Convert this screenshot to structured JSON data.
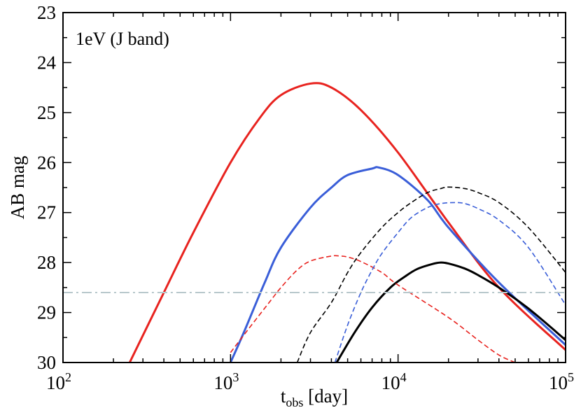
{
  "chart_data": {
    "type": "line",
    "annotation": "1eV (J band)",
    "xlabel": {
      "main": "t",
      "sub": "obs",
      "rest": " [day]"
    },
    "ylabel": "AB mag",
    "x_scale": "log",
    "xlim": [
      100,
      100000
    ],
    "ylim": [
      30,
      23
    ],
    "y_inverted": true,
    "x_ticks": [
      {
        "value": 100,
        "base": "10",
        "exp": "2"
      },
      {
        "value": 1000,
        "base": "10",
        "exp": "3"
      },
      {
        "value": 10000,
        "base": "10",
        "exp": "4"
      },
      {
        "value": 100000,
        "base": "10",
        "exp": "5"
      }
    ],
    "y_ticks": [
      "23",
      "24",
      "25",
      "26",
      "27",
      "28",
      "29",
      "30"
    ],
    "series": [
      {
        "name": "red-solid",
        "color": "#e8231f",
        "style": "solid",
        "x": [
          250,
          400,
          600,
          1000,
          1500,
          2000,
          3000,
          4000,
          6000,
          10000,
          20000,
          40000,
          100000
        ],
        "y": [
          30.0,
          28.6,
          27.4,
          26.0,
          25.1,
          24.65,
          24.42,
          24.5,
          24.95,
          25.8,
          27.2,
          28.5,
          29.75
        ]
      },
      {
        "name": "blue-solid",
        "color": "#3a5ed8",
        "style": "solid",
        "x": [
          1000,
          1200,
          1600,
          2000,
          3000,
          4000,
          5000,
          7000,
          7700,
          10000,
          15000,
          20000,
          40000,
          100000
        ],
        "y": [
          30.0,
          29.4,
          28.4,
          27.7,
          26.9,
          26.5,
          26.25,
          26.12,
          26.1,
          26.25,
          26.75,
          27.3,
          28.4,
          29.65
        ]
      },
      {
        "name": "black-solid",
        "color": "#000000",
        "style": "solid",
        "x": [
          4300,
          5500,
          7000,
          9000,
          11000,
          13000,
          16000,
          18000,
          20000,
          25000,
          30000,
          40000,
          60000,
          100000
        ],
        "y": [
          30.0,
          29.4,
          28.9,
          28.5,
          28.28,
          28.13,
          28.03,
          28.0,
          28.02,
          28.12,
          28.25,
          28.5,
          28.92,
          29.55
        ]
      },
      {
        "name": "red-dashed",
        "color": "#e8231f",
        "style": "dashed",
        "x": [
          1000,
          1300,
          1700,
          2000,
          2500,
          3000,
          4000,
          4500,
          5000,
          6000,
          8000,
          10000,
          20000,
          30000,
          40000,
          50000
        ],
        "y": [
          29.8,
          29.3,
          28.8,
          28.5,
          28.15,
          27.97,
          27.87,
          27.87,
          27.89,
          27.98,
          28.2,
          28.45,
          29.1,
          29.55,
          29.85,
          30.0
        ]
      },
      {
        "name": "black-dashed",
        "color": "#000000",
        "style": "dashed",
        "x": [
          2500,
          3000,
          4000,
          5000,
          6000,
          8000,
          10000,
          12000,
          15000,
          18000,
          20000,
          25000,
          30000,
          40000,
          60000,
          100000
        ],
        "y": [
          30.0,
          29.4,
          28.8,
          28.2,
          27.8,
          27.3,
          27.0,
          26.8,
          26.6,
          26.52,
          26.49,
          26.52,
          26.6,
          26.8,
          27.3,
          28.2
        ]
      },
      {
        "name": "blue-dashed",
        "color": "#3a5ed8",
        "style": "dashed",
        "x": [
          4200,
          5000,
          6000,
          7000,
          8000,
          10000,
          12000,
          15000,
          18000,
          22000,
          25000,
          30000,
          40000,
          60000,
          100000
        ],
        "y": [
          30.0,
          29.25,
          28.6,
          28.15,
          27.82,
          27.4,
          27.1,
          26.9,
          26.82,
          26.8,
          26.82,
          26.92,
          27.15,
          27.7,
          28.85
        ]
      },
      {
        "name": "sensitivity-limit",
        "color": "#b8c8cc",
        "style": "dashdot",
        "x": [
          100,
          100000
        ],
        "y": [
          28.6,
          28.6
        ]
      }
    ]
  }
}
